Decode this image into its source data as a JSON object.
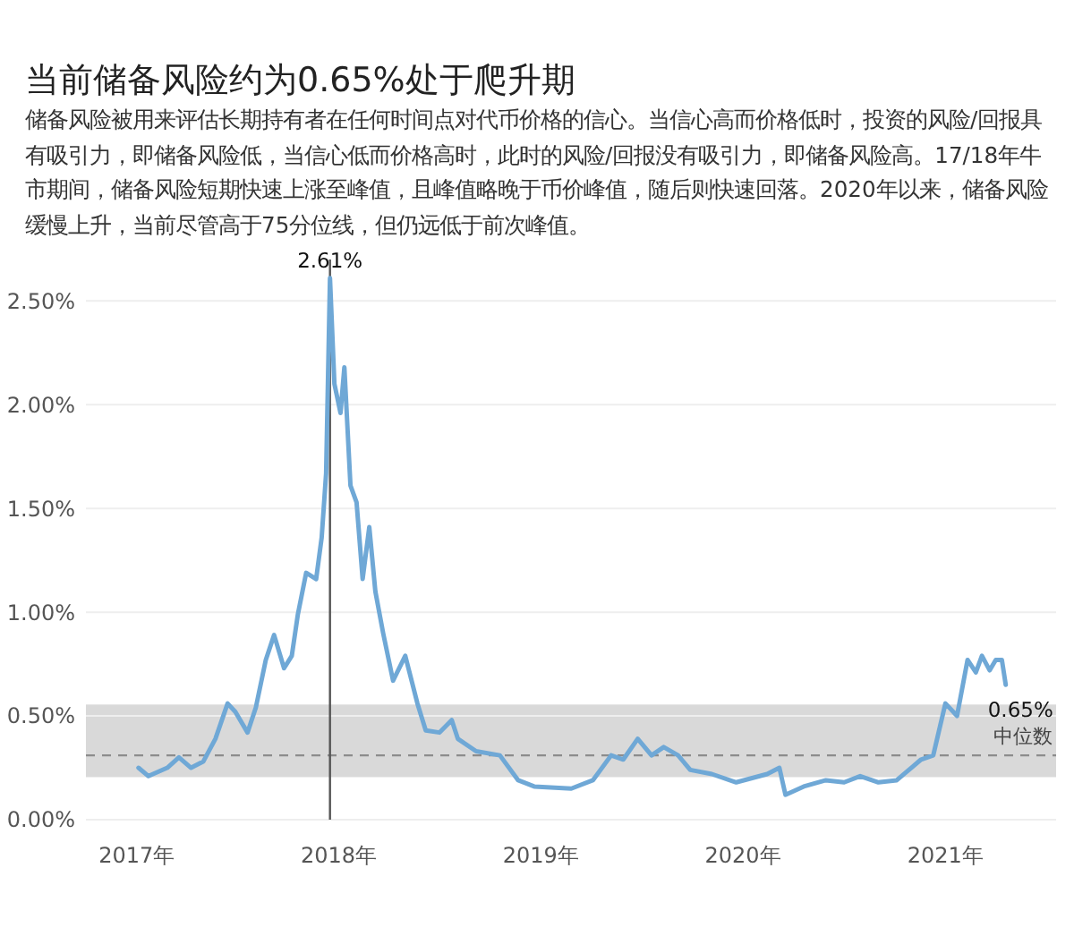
{
  "chart_data": {
    "type": "line",
    "title": "当前储备风险约为0.65%处于爬升期",
    "subtitle": "储备风险被用来评估长期持有者在任何时间点对代币价格的信心。当信心高而价格低时，投资的风险/回报具有吸引力，即储备风险低，当信心低而价格高时，此时的风险/回报没有吸引力，即储备风险高。17/18年牛市期间，储备风险短期快速上涨至峰值，且峰值略晚于币价峰值，随后则快速回落。2020年以来，储备风险缓慢上升，当前尽管高于75分位线，但仍远低于前次峰值。",
    "x": [
      "2017-01-04",
      "2017-01-22",
      "2017-02-25",
      "2017-03-18",
      "2017-04-09",
      "2017-05-01",
      "2017-05-23",
      "2017-06-14",
      "2017-06-28",
      "2017-07-20",
      "2017-08-04",
      "2017-08-22",
      "2017-09-06",
      "2017-09-24",
      "2017-10-08",
      "2017-10-19",
      "2017-11-03",
      "2017-11-21",
      "2017-12-01",
      "2017-12-09",
      "2017-12-16",
      "2017-12-24",
      "2018-01-04",
      "2018-01-11",
      "2018-01-22",
      "2018-02-02",
      "2018-02-13",
      "2018-02-25",
      "2018-03-08",
      "2018-03-22",
      "2018-04-09",
      "2018-05-01",
      "2018-05-23",
      "2018-06-07",
      "2018-07-02",
      "2018-07-24",
      "2018-08-04",
      "2018-09-06",
      "2018-10-19",
      "2018-11-21",
      "2018-12-20",
      "2019-02-25",
      "2019-04-05",
      "2019-05-08",
      "2019-05-30",
      "2019-06-25",
      "2019-07-20",
      "2019-08-11",
      "2019-09-06",
      "2019-09-28",
      "2019-11-06",
      "2019-12-20",
      "2020-02-14",
      "2020-03-07",
      "2020-03-18",
      "2020-04-20",
      "2020-05-30",
      "2020-07-02",
      "2020-07-31",
      "2020-09-02",
      "2020-10-05",
      "2020-11-18",
      "2020-12-10",
      "2021-01-01",
      "2021-01-22",
      "2021-02-10",
      "2021-02-25",
      "2021-03-08",
      "2021-03-22",
      "2021-04-02",
      "2021-04-13",
      "2021-04-20"
    ],
    "series": [
      {
        "color": "#6fa8d6",
        "values": [
          0.25,
          0.21,
          0.25,
          0.3,
          0.25,
          0.28,
          0.39,
          0.56,
          0.52,
          0.42,
          0.54,
          0.77,
          0.89,
          0.73,
          0.79,
          0.99,
          1.19,
          1.16,
          1.36,
          1.67,
          2.61,
          2.1,
          1.96,
          2.18,
          1.61,
          1.53,
          1.16,
          1.41,
          1.1,
          0.9,
          0.67,
          0.79,
          0.56,
          0.43,
          0.42,
          0.48,
          0.39,
          0.33,
          0.31,
          0.19,
          0.16,
          0.15,
          0.19,
          0.31,
          0.29,
          0.39,
          0.31,
          0.35,
          0.31,
          0.24,
          0.22,
          0.18,
          0.22,
          0.25,
          0.12,
          0.16,
          0.19,
          0.18,
          0.21,
          0.18,
          0.19,
          0.29,
          0.31,
          0.56,
          0.5,
          0.77,
          0.71,
          0.79,
          0.72,
          0.77,
          0.77,
          0.65
        ]
      }
    ],
    "xlim": [
      "2016-10-01",
      "2021-07-20"
    ],
    "xticks": [
      {
        "value": "2017-01-01",
        "label": "2017年"
      },
      {
        "value": "2018-01-01",
        "label": "2018年"
      },
      {
        "value": "2019-01-01",
        "label": "2019年"
      },
      {
        "value": "2020-01-01",
        "label": "2020年"
      },
      {
        "value": "2021-01-01",
        "label": "2021年"
      }
    ],
    "ylim": [
      0,
      2.7
    ],
    "yticks": [
      {
        "value": 0,
        "label": "0.00%"
      },
      {
        "value": 0.5,
        "label": "0.50%"
      },
      {
        "value": 1,
        "label": "1.00%"
      },
      {
        "value": 1.5,
        "label": "1.50%"
      },
      {
        "value": 2,
        "label": "2.00%"
      },
      {
        "value": 2.5,
        "label": "2.50%"
      }
    ],
    "grid": "y",
    "bands": [
      {
        "axis": "y",
        "from": 0.205,
        "to": 0.555,
        "color": "#d9d9d9"
      }
    ],
    "ref_lines": [
      {
        "axis": "y",
        "value": 0.31,
        "label": "中位数",
        "color": "#8c8c8c",
        "line_style": "dashed"
      },
      {
        "axis": "x",
        "value": "2017-12-16",
        "color": "#555555",
        "line_style": "solid"
      }
    ],
    "annotations": [
      {
        "text": "2.61%",
        "x": "2017-12-16",
        "y": 2.61
      },
      {
        "text": "0.65%",
        "x": "2021-04-20",
        "y": 0.65
      }
    ],
    "line_style": "solid",
    "marker": "none"
  }
}
